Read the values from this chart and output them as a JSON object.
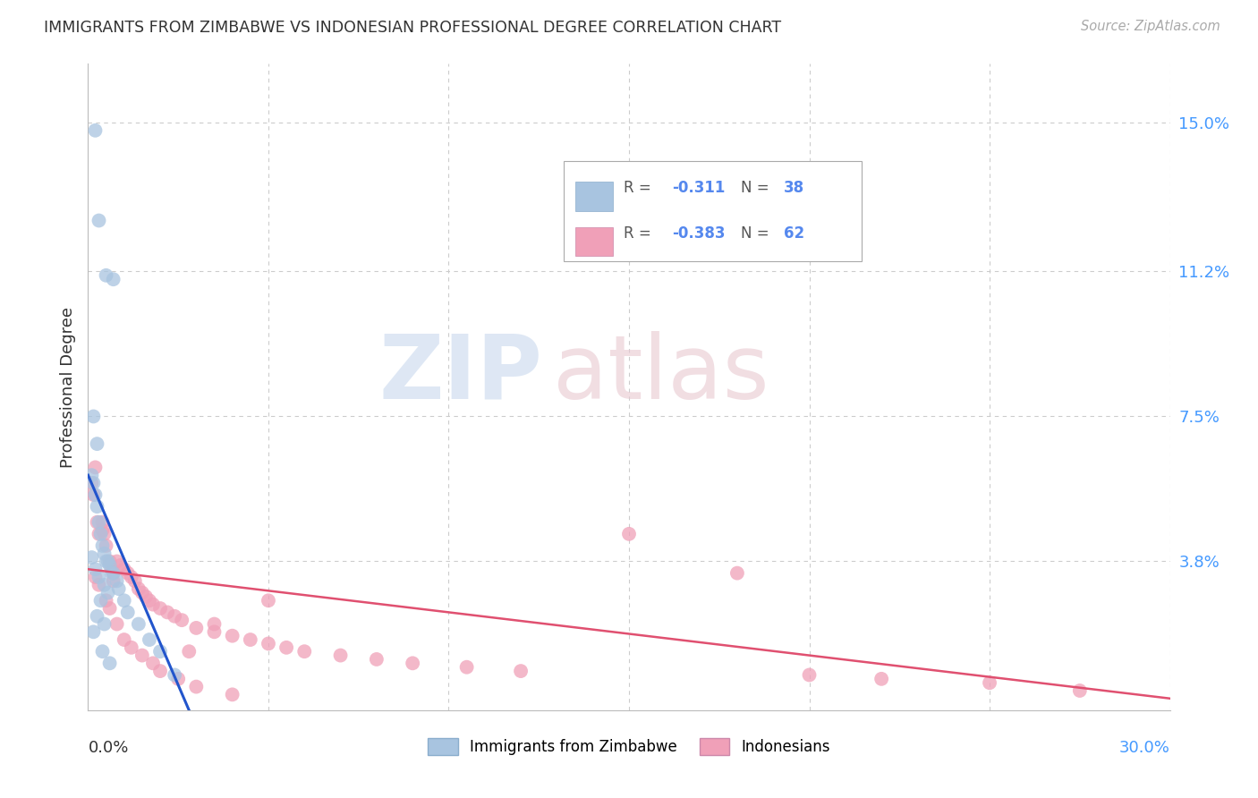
{
  "title": "IMMIGRANTS FROM ZIMBABWE VS INDONESIAN PROFESSIONAL DEGREE CORRELATION CHART",
  "source": "Source: ZipAtlas.com",
  "ylabel": "Professional Degree",
  "ytick_labels": [
    "15.0%",
    "11.2%",
    "7.5%",
    "3.8%"
  ],
  "ytick_values": [
    15.0,
    11.2,
    7.5,
    3.8
  ],
  "xlim": [
    0.0,
    30.0
  ],
  "ylim": [
    0.0,
    16.5
  ],
  "blue_color": "#a8c4e0",
  "pink_color": "#f0a0b8",
  "blue_line_color": "#2255cc",
  "pink_line_color": "#e05070",
  "zim_line_x0": 0.0,
  "zim_line_y0": 6.0,
  "zim_line_x1": 2.8,
  "zim_line_y1": 0.0,
  "ind_line_x0": 0.0,
  "ind_line_y0": 3.6,
  "ind_line_x1": 30.0,
  "ind_line_y1": 0.3,
  "zimbabwe_x": [
    0.2,
    0.3,
    0.5,
    0.7,
    0.15,
    0.25,
    0.1,
    0.15,
    0.2,
    0.25,
    0.3,
    0.35,
    0.4,
    0.45,
    0.5,
    0.55,
    0.6,
    0.65,
    0.7,
    0.8,
    0.85,
    1.0,
    1.1,
    1.4,
    1.7,
    2.0,
    2.4,
    0.1,
    0.2,
    0.3,
    0.45,
    0.55,
    0.35,
    0.25,
    0.45,
    0.15,
    0.4,
    0.6
  ],
  "zimbabwe_y": [
    14.8,
    12.5,
    11.1,
    11.0,
    7.5,
    6.8,
    6.0,
    5.8,
    5.5,
    5.2,
    4.8,
    4.5,
    4.2,
    4.0,
    3.8,
    3.8,
    3.7,
    3.5,
    3.5,
    3.3,
    3.1,
    2.8,
    2.5,
    2.2,
    1.8,
    1.5,
    0.9,
    3.9,
    3.6,
    3.4,
    3.2,
    3.0,
    2.8,
    2.4,
    2.2,
    2.0,
    1.5,
    1.2
  ],
  "indonesian_x": [
    0.1,
    0.15,
    0.2,
    0.25,
    0.3,
    0.4,
    0.4,
    0.45,
    0.5,
    0.6,
    0.65,
    0.7,
    0.8,
    0.9,
    1.0,
    1.1,
    1.2,
    1.3,
    1.5,
    1.6,
    1.7,
    1.8,
    2.0,
    2.2,
    2.4,
    2.6,
    3.0,
    3.5,
    4.0,
    4.5,
    5.0,
    5.5,
    6.0,
    7.0,
    8.0,
    9.0,
    10.5,
    12.0,
    15.0,
    18.0,
    20.0,
    22.0,
    25.0,
    27.5,
    0.2,
    0.3,
    0.5,
    0.6,
    0.8,
    1.0,
    1.2,
    1.5,
    2.0,
    2.5,
    3.0,
    4.0,
    5.0,
    3.5,
    2.8,
    1.8,
    0.7,
    1.4
  ],
  "indonesian_y": [
    5.8,
    5.5,
    6.2,
    4.8,
    4.5,
    4.8,
    4.6,
    4.5,
    4.2,
    3.8,
    3.6,
    3.5,
    3.8,
    3.7,
    3.6,
    3.5,
    3.4,
    3.3,
    3.0,
    2.9,
    2.8,
    2.7,
    2.6,
    2.5,
    2.4,
    2.3,
    2.1,
    2.0,
    1.9,
    1.8,
    1.7,
    1.6,
    1.5,
    1.4,
    1.3,
    1.2,
    1.1,
    1.0,
    4.5,
    3.5,
    0.9,
    0.8,
    0.7,
    0.5,
    3.4,
    3.2,
    2.8,
    2.6,
    2.2,
    1.8,
    1.6,
    1.4,
    1.0,
    0.8,
    0.6,
    0.4,
    2.8,
    2.2,
    1.5,
    1.2,
    3.3,
    3.1
  ]
}
